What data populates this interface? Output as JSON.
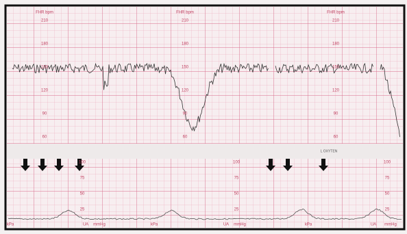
{
  "fhr_scale": {
    "title": "FHR bpm",
    "labels": [
      "210",
      "180",
      "150",
      "120",
      "90",
      "60"
    ]
  },
  "ua_scale": {
    "labels": [
      "100",
      "75",
      "50",
      "25"
    ]
  },
  "band_text": "L OXYTEN",
  "bottom_labels": [
    "kPa",
    "UA",
    "mmHg"
  ]
}
